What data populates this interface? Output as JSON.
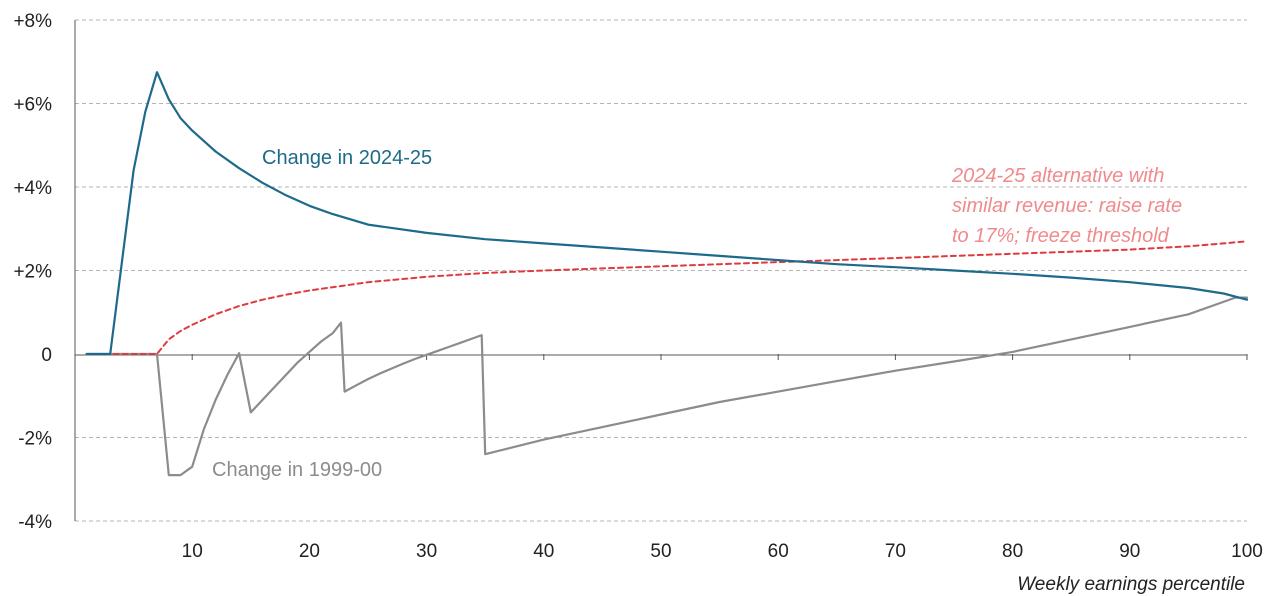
{
  "chart_data": {
    "type": "line",
    "title": "",
    "xlabel": "Weekly earnings percentile",
    "ylabel": "",
    "xlim": [
      0,
      100
    ],
    "ylim": [
      -4,
      8
    ],
    "grid": "horizontal dashed",
    "x_ticks": [
      10,
      20,
      30,
      40,
      50,
      60,
      70,
      80,
      90,
      100
    ],
    "x_tick_labels": [
      "10",
      "20",
      "30",
      "40",
      "50",
      "60",
      "70",
      "80",
      "90",
      "100"
    ],
    "y_ticks": [
      -4,
      -2,
      0,
      2,
      4,
      6,
      8
    ],
    "y_tick_labels": [
      "-4%",
      "-2%",
      "0",
      "+2%",
      "+4%",
      "+6%",
      "+8%"
    ],
    "series": [
      {
        "name": "Change in 1999-00",
        "color": "#8c8c8c",
        "dash": "solid",
        "points": [
          [
            1,
            0
          ],
          [
            2,
            0
          ],
          [
            3,
            0
          ],
          [
            4,
            0
          ],
          [
            5,
            0
          ],
          [
            6,
            0
          ],
          [
            7,
            0
          ],
          [
            8,
            -2.9
          ],
          [
            9,
            -2.9
          ],
          [
            10,
            -2.7
          ],
          [
            11,
            -1.8
          ],
          [
            12,
            -1.1
          ],
          [
            13,
            -0.5
          ],
          [
            14,
            0.02
          ],
          [
            15,
            -1.4
          ],
          [
            16,
            -1.1
          ],
          [
            17,
            -0.8
          ],
          [
            18,
            -0.5
          ],
          [
            19,
            -0.2
          ],
          [
            20,
            0.05
          ],
          [
            21,
            0.3
          ],
          [
            22,
            0.5
          ],
          [
            22.7,
            0.75
          ],
          [
            23,
            -0.9
          ],
          [
            24,
            -0.75
          ],
          [
            25,
            -0.6
          ],
          [
            26,
            -0.47
          ],
          [
            27,
            -0.35
          ],
          [
            28,
            -0.23
          ],
          [
            29,
            -0.12
          ],
          [
            30,
            -0.02
          ],
          [
            31,
            0.08
          ],
          [
            32,
            0.18
          ],
          [
            33,
            0.28
          ],
          [
            34,
            0.38
          ],
          [
            34.7,
            0.45
          ],
          [
            35,
            -2.4
          ],
          [
            40,
            -2.05
          ],
          [
            45,
            -1.75
          ],
          [
            50,
            -1.45
          ],
          [
            55,
            -1.15
          ],
          [
            60,
            -0.9
          ],
          [
            65,
            -0.65
          ],
          [
            70,
            -0.4
          ],
          [
            75,
            -0.18
          ],
          [
            80,
            0.05
          ],
          [
            85,
            0.35
          ],
          [
            90,
            0.65
          ],
          [
            95,
            0.95
          ],
          [
            97,
            1.15
          ],
          [
            99,
            1.35
          ],
          [
            100,
            1.35
          ]
        ]
      },
      {
        "name": "Change in 2024-25",
        "color": "#1d6a8a",
        "dash": "solid",
        "points": [
          [
            1,
            0
          ],
          [
            2,
            0
          ],
          [
            3,
            0
          ],
          [
            4,
            2.2
          ],
          [
            5,
            4.4
          ],
          [
            6,
            5.8
          ],
          [
            7,
            6.75
          ],
          [
            8,
            6.1
          ],
          [
            9,
            5.65
          ],
          [
            10,
            5.35
          ],
          [
            12,
            4.85
          ],
          [
            14,
            4.45
          ],
          [
            16,
            4.1
          ],
          [
            18,
            3.8
          ],
          [
            20,
            3.55
          ],
          [
            22,
            3.35
          ],
          [
            25,
            3.1
          ],
          [
            30,
            2.9
          ],
          [
            35,
            2.75
          ],
          [
            40,
            2.65
          ],
          [
            45,
            2.55
          ],
          [
            50,
            2.45
          ],
          [
            55,
            2.35
          ],
          [
            60,
            2.25
          ],
          [
            65,
            2.15
          ],
          [
            70,
            2.08
          ],
          [
            75,
            2.0
          ],
          [
            80,
            1.92
          ],
          [
            85,
            1.83
          ],
          [
            90,
            1.72
          ],
          [
            95,
            1.58
          ],
          [
            98,
            1.45
          ],
          [
            100,
            1.3
          ]
        ]
      },
      {
        "name": "2024-25 alternative with similar revenue: raise rate to 17%; freeze threshold",
        "color": "#e03a3e",
        "dash": "dashed",
        "points": [
          [
            1,
            0
          ],
          [
            2,
            0
          ],
          [
            3,
            0
          ],
          [
            4,
            0
          ],
          [
            5,
            0
          ],
          [
            6,
            0
          ],
          [
            7,
            0
          ],
          [
            8,
            0.35
          ],
          [
            9,
            0.55
          ],
          [
            10,
            0.7
          ],
          [
            12,
            0.95
          ],
          [
            14,
            1.15
          ],
          [
            16,
            1.3
          ],
          [
            18,
            1.42
          ],
          [
            20,
            1.52
          ],
          [
            25,
            1.72
          ],
          [
            30,
            1.85
          ],
          [
            35,
            1.94
          ],
          [
            40,
            2.0
          ],
          [
            45,
            2.05
          ],
          [
            50,
            2.1
          ],
          [
            55,
            2.15
          ],
          [
            60,
            2.2
          ],
          [
            65,
            2.25
          ],
          [
            70,
            2.3
          ],
          [
            75,
            2.35
          ],
          [
            80,
            2.4
          ],
          [
            85,
            2.45
          ],
          [
            90,
            2.5
          ],
          [
            95,
            2.58
          ],
          [
            98,
            2.65
          ],
          [
            100,
            2.7
          ]
        ]
      }
    ],
    "annotations": {
      "line_1999": "Change in 1999-00",
      "line_2024": "Change in 2024-25",
      "alt_line1": "2024-25 alternative with",
      "alt_line2": "similar revenue: raise rate",
      "alt_line3": "to 17%; freeze threshold"
    }
  }
}
